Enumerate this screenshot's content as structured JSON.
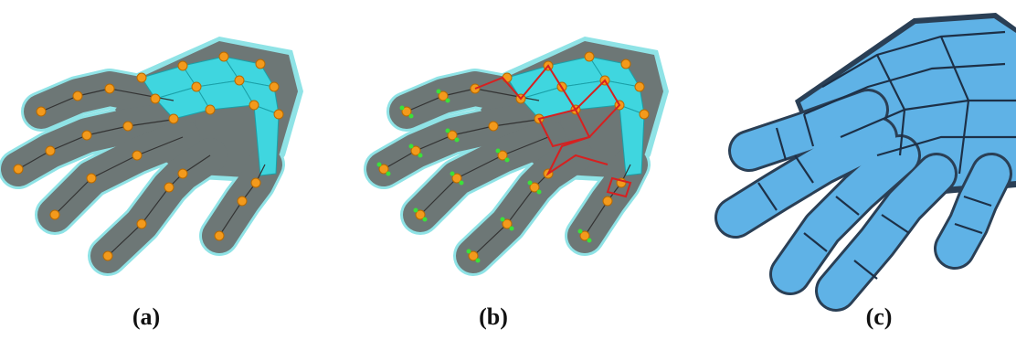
{
  "labels": [
    "(a)",
    "(b)",
    "(c)"
  ]
}
